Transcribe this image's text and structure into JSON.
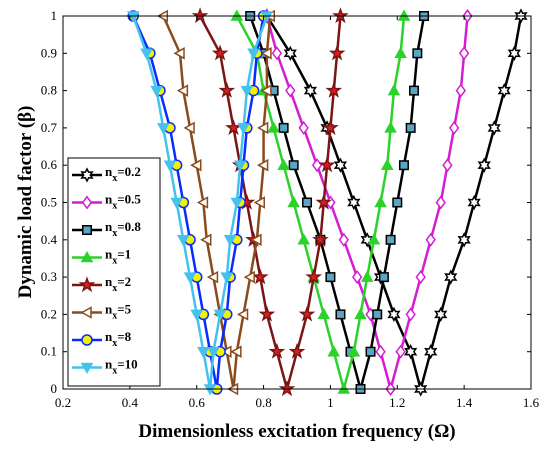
{
  "chart_data": {
    "type": "line",
    "xlabel": "Dimensionless excitation frequency (Ω)",
    "ylabel": "Dynamic load factor (β)",
    "xlim": [
      0.2,
      1.6
    ],
    "ylim": [
      0,
      1
    ],
    "xticks": [
      "0.2",
      "0.4",
      "0.6",
      "0.8",
      "1",
      "1.2",
      "1.4",
      "1.6"
    ],
    "yticks": [
      "0",
      "0.1",
      "0.2",
      "0.3",
      "0.4",
      "0.5",
      "0.6",
      "0.7",
      "0.8",
      "0.9",
      "1"
    ],
    "grid": false,
    "legend_position": "left",
    "y_values": [
      0,
      0.1,
      0.2,
      0.3,
      0.4,
      0.5,
      0.6,
      0.7,
      0.8,
      0.9,
      1
    ],
    "series": [
      {
        "name": "n_x=0.2",
        "legend_base": "n",
        "legend_sub": "x",
        "legend_value": "=0.2",
        "color": "#000000",
        "fill": "#ffffff",
        "marker": "hexagram",
        "left_x": [
          1.27,
          1.24,
          1.19,
          1.15,
          1.11,
          1.07,
          1.03,
          0.99,
          0.94,
          0.88,
          0.81
        ],
        "right_x": [
          1.27,
          1.3,
          1.33,
          1.36,
          1.4,
          1.43,
          1.46,
          1.49,
          1.52,
          1.55,
          1.57
        ]
      },
      {
        "name": "n_x=0.5",
        "legend_base": "n",
        "legend_sub": "x",
        "legend_value": "=0.5",
        "color": "#d41cd4",
        "fill": "#ffffff",
        "marker": "diamond",
        "left_x": [
          1.18,
          1.15,
          1.12,
          1.08,
          1.04,
          1.0,
          0.96,
          0.92,
          0.88,
          0.84,
          0.81
        ],
        "right_x": [
          1.18,
          1.21,
          1.24,
          1.27,
          1.3,
          1.33,
          1.35,
          1.37,
          1.39,
          1.4,
          1.41
        ]
      },
      {
        "name": "n_x=0.8",
        "legend_base": "n",
        "legend_sub": "x",
        "legend_value": "=0.8",
        "color": "#000000",
        "fill": "#5aa5c4",
        "marker": "square",
        "left_x": [
          1.09,
          1.06,
          1.03,
          1.0,
          0.97,
          0.93,
          0.89,
          0.86,
          0.83,
          0.8,
          0.76
        ],
        "right_x": [
          1.09,
          1.12,
          1.14,
          1.16,
          1.18,
          1.2,
          1.22,
          1.24,
          1.25,
          1.26,
          1.28
        ]
      },
      {
        "name": "n_x=1",
        "legend_base": "n",
        "legend_sub": "x",
        "legend_value": "=1",
        "color": "#2bd22b",
        "fill": "#2bd22b",
        "marker": "triangle-up",
        "left_x": [
          1.04,
          1.01,
          0.98,
          0.95,
          0.92,
          0.89,
          0.86,
          0.83,
          0.8,
          0.78,
          0.72
        ],
        "right_x": [
          1.04,
          1.07,
          1.09,
          1.11,
          1.13,
          1.15,
          1.17,
          1.18,
          1.19,
          1.21,
          1.22
        ]
      },
      {
        "name": "n_x=2",
        "legend_base": "n",
        "legend_sub": "x",
        "legend_value": "=2",
        "color": "#7a1515",
        "fill": "#e01b1b",
        "marker": "pentagram",
        "left_x": [
          0.87,
          0.84,
          0.81,
          0.79,
          0.77,
          0.75,
          0.73,
          0.71,
          0.69,
          0.67,
          0.61
        ],
        "right_x": [
          0.87,
          0.9,
          0.93,
          0.95,
          0.97,
          0.98,
          0.99,
          1.0,
          1.01,
          1.02,
          1.03
        ]
      },
      {
        "name": "n_x=5",
        "legend_base": "n",
        "legend_sub": "x",
        "legend_value": "=5",
        "color": "#8b4a1a",
        "fill": "#ffffff",
        "marker": "triangle-left",
        "left_x": [
          0.71,
          0.69,
          0.67,
          0.65,
          0.63,
          0.62,
          0.6,
          0.58,
          0.56,
          0.55,
          0.5
        ],
        "right_x": [
          0.71,
          0.72,
          0.74,
          0.76,
          0.78,
          0.79,
          0.8,
          0.8,
          0.81,
          0.81,
          0.82
        ]
      },
      {
        "name": "n_x=8",
        "legend_base": "n",
        "legend_sub": "x",
        "legend_value": "=8",
        "color": "#0a2bff",
        "fill": "#f2f200",
        "marker": "circle",
        "left_x": [
          0.66,
          0.64,
          0.62,
          0.6,
          0.58,
          0.56,
          0.54,
          0.52,
          0.49,
          0.46,
          0.41
        ],
        "right_x": [
          0.66,
          0.67,
          0.69,
          0.7,
          0.72,
          0.73,
          0.74,
          0.75,
          0.77,
          0.78,
          0.8
        ]
      },
      {
        "name": "n_x=10",
        "legend_base": "n",
        "legend_sub": "x",
        "legend_value": "=10",
        "color": "#44c2ee",
        "fill": "#44c2ee",
        "marker": "triangle-down",
        "left_x": [
          0.64,
          0.62,
          0.6,
          0.58,
          0.56,
          0.54,
          0.52,
          0.5,
          0.48,
          0.45,
          0.41
        ],
        "right_x": [
          0.64,
          0.65,
          0.67,
          0.69,
          0.7,
          0.72,
          0.73,
          0.74,
          0.75,
          0.77,
          0.81
        ]
      }
    ]
  }
}
